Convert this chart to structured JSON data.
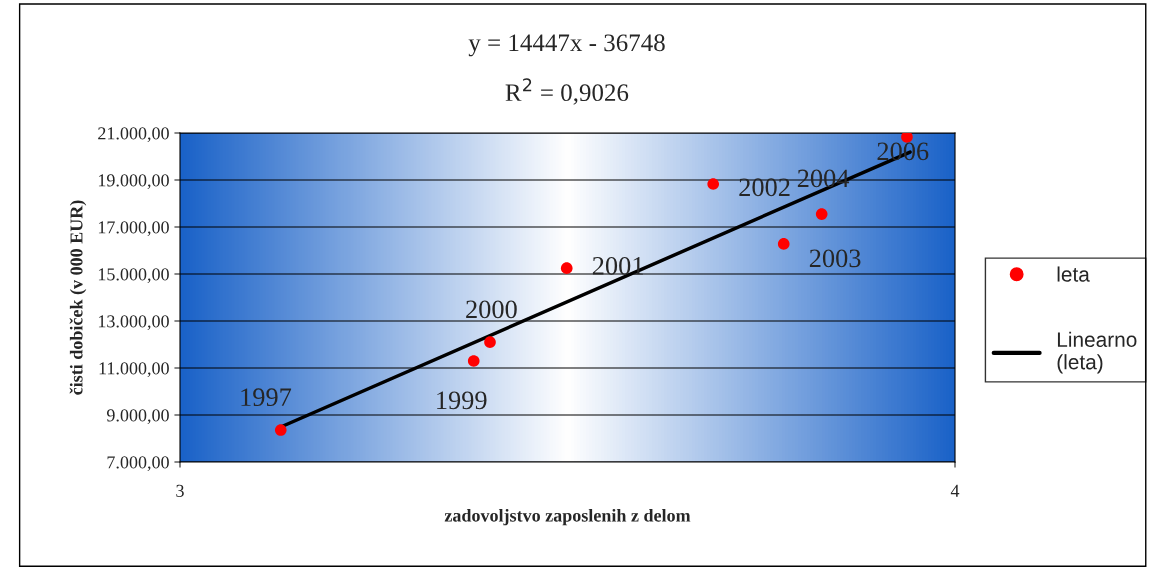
{
  "chart_data": {
    "type": "scatter",
    "title": "y = 14447x - 36748",
    "subtitle": "R$^{2}$ = 0,9026",
    "xlabel": "zadovoljstvo zaposlenih z delom",
    "ylabel": "čisti dobiček (v 000 EUR)",
    "x": [
      3.13,
      3.379,
      3.4,
      3.499,
      3.688,
      3.779,
      3.828,
      3.938
    ],
    "series": [
      {
        "name": "leta",
        "color": "#ff0000",
        "marker": "circle",
        "values": [
          8360,
          11300,
          12100,
          15250,
          18830,
          16280,
          17550,
          20830
        ]
      },
      {
        "name": "Linearno (leta)",
        "type": "line",
        "color": "#000000",
        "marker": "none",
        "line_style": "solid",
        "x": [
          3.13,
          3.942
        ],
        "values": [
          8490,
          20190
        ]
      }
    ],
    "annotations": [
      {
        "text": "1997",
        "x": 3.13,
        "y": 8360
      },
      {
        "text": "1999",
        "x": 3.379,
        "y": 11300
      },
      {
        "text": "2000",
        "x": 3.4,
        "y": 12100
      },
      {
        "text": "2001",
        "x": 3.499,
        "y": 15250
      },
      {
        "text": "2002",
        "x": 3.688,
        "y": 18830
      },
      {
        "text": "2003",
        "x": 3.779,
        "y": 16280
      },
      {
        "text": "2004",
        "x": 3.828,
        "y": 17550
      },
      {
        "text": "2006",
        "x": 3.938,
        "y": 20830
      }
    ],
    "xlim": [
      3,
      4
    ],
    "xticks": [
      3,
      4
    ],
    "ylim": [
      7000,
      21000
    ],
    "yticks": [
      {
        "value": 7000,
        "label": "7.000,00"
      },
      {
        "value": 9000,
        "label": "9.000,00"
      },
      {
        "value": 11000,
        "label": "11.000,00"
      },
      {
        "value": 13000,
        "label": "13.000,00"
      },
      {
        "value": 15000,
        "label": "15.000,00"
      },
      {
        "value": 17000,
        "label": "17.000,00"
      },
      {
        "value": 19000,
        "label": "19.000,00"
      },
      {
        "value": 21000,
        "label": "21.000,00"
      }
    ],
    "grid": "y",
    "legend": "right"
  }
}
